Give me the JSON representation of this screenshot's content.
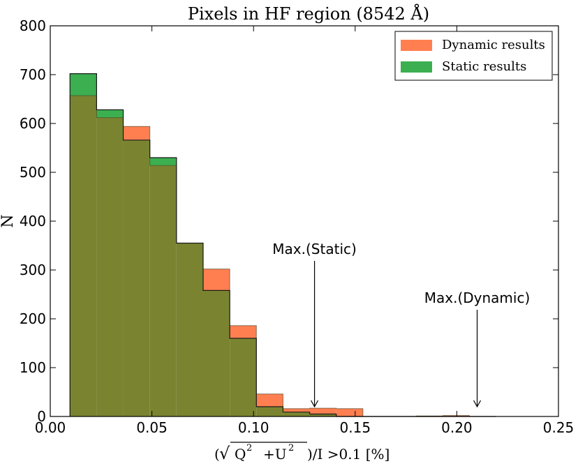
{
  "chart_data": {
    "type": "histogram",
    "title": "Pixels in HF region (8542 Å)",
    "xlabel": {
      "prefix": "(",
      "q": "Q",
      "exp1": "2",
      "plus_u": "+U",
      "exp2": "2",
      "suffix": ")/I  >0.1 [%]"
    },
    "ylabel": "N",
    "xlim": [
      0.0,
      0.25
    ],
    "ylim": [
      0,
      800
    ],
    "xticks": [
      "0.00",
      "0.05",
      "0.10",
      "0.15",
      "0.20",
      "0.25"
    ],
    "yticks": [
      "0",
      "100",
      "200",
      "300",
      "400",
      "500",
      "600",
      "700",
      "800"
    ],
    "bin_edges": [
      0.0097,
      0.0228,
      0.0359,
      0.049,
      0.0621,
      0.0752,
      0.0883,
      0.1014,
      0.1145,
      0.1276,
      0.1407,
      0.1538,
      0.1669,
      0.18,
      0.1931,
      0.2062,
      0.2193
    ],
    "series": [
      {
        "name": "Dynamic results",
        "color": "#ff7f50",
        "values": [
          657,
          612,
          594,
          514,
          355,
          302,
          186,
          46,
          16,
          17,
          16,
          0,
          0,
          1,
          2,
          0
        ]
      },
      {
        "name": "Static results",
        "color": "#3caf50",
        "values": [
          702,
          628,
          566,
          530,
          355,
          258,
          160,
          20,
          9,
          5,
          0,
          0,
          0,
          0,
          0,
          0
        ]
      }
    ],
    "overlap_color": "#7a8430",
    "legend_position": "top-right",
    "annotations": [
      {
        "text": "Max.(Static)",
        "x": 0.13,
        "y_tip": 20,
        "y_text": 310
      },
      {
        "text": "Max.(Dynamic)",
        "x": 0.21,
        "y_tip": 20,
        "y_text": 210
      }
    ]
  }
}
